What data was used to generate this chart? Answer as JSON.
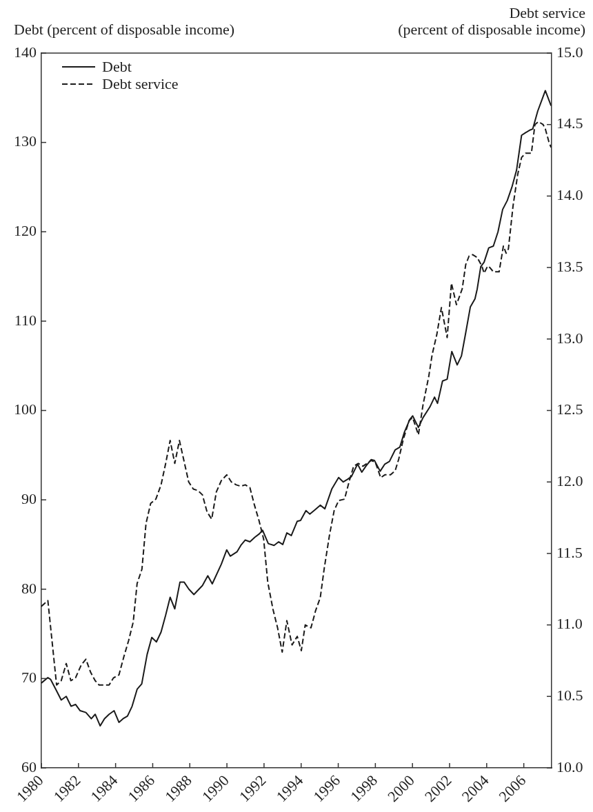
{
  "chart_data": {
    "type": "line",
    "ylabel": "Debt (percent of disposable income)",
    "y2label": "Debt service\n(percent of disposable income)",
    "xlim": [
      1980,
      2007.5
    ],
    "xticks": [
      1980,
      1982,
      1984,
      1986,
      1988,
      1990,
      1992,
      1994,
      1996,
      1998,
      2000,
      2002,
      2004,
      2006
    ],
    "ylim": [
      60,
      140
    ],
    "yticks": [
      60,
      70,
      80,
      90,
      100,
      110,
      120,
      130,
      140
    ],
    "y2lim": [
      10,
      15
    ],
    "y2ticks": [
      {
        "value": 10,
        "label": "10.0"
      },
      {
        "value": 10.5,
        "label": "10.5"
      },
      {
        "value": 11,
        "label": "11.0"
      },
      {
        "value": 11.5,
        "label": "11.5"
      },
      {
        "value": 12,
        "label": "12.0"
      },
      {
        "value": 12.5,
        "label": "12.5"
      },
      {
        "value": 13,
        "label": "13.0"
      },
      {
        "value": 13.5,
        "label": "13.5"
      },
      {
        "value": 14,
        "label": "14.0"
      },
      {
        "value": 14.5,
        "label": "14.5"
      },
      {
        "value": 15,
        "label": "15.0"
      }
    ],
    "legend": "top left",
    "marker": "none",
    "series": [
      {
        "name": "Debt",
        "color": "#1a1a1a",
        "line_style": "solid",
        "x": [
          1980.0,
          1980.35,
          1980.5,
          1980.8,
          1981.07,
          1981.34,
          1981.6,
          1981.84,
          1982.09,
          1982.4,
          1982.69,
          1982.9,
          1983.17,
          1983.4,
          1983.65,
          1983.92,
          1984.18,
          1984.4,
          1984.64,
          1984.89,
          1985.16,
          1985.41,
          1985.7,
          1985.95,
          1986.2,
          1986.45,
          1986.7,
          1986.94,
          1987.19,
          1987.47,
          1987.69,
          1987.95,
          1988.22,
          1988.45,
          1988.68,
          1988.97,
          1989.21,
          1989.7,
          1989.99,
          1990.18,
          1990.55,
          1990.75,
          1990.99,
          1991.24,
          1991.5,
          1991.75,
          1991.92,
          1992.23,
          1992.54,
          1992.79,
          1993.01,
          1993.23,
          1993.47,
          1993.79,
          1993.97,
          1994.26,
          1994.47,
          1994.75,
          1995.03,
          1995.28,
          1995.65,
          1996.02,
          1996.27,
          1996.5,
          1996.71,
          1997.04,
          1997.27,
          1997.5,
          1997.77,
          1997.95,
          1998.26,
          1998.51,
          1998.76,
          1999.07,
          1999.32,
          1999.57,
          1999.86,
          2000.01,
          2000.32,
          2000.57,
          2000.94,
          2001.19,
          2001.35,
          2001.62,
          2001.87,
          2002.12,
          2002.41,
          2002.64,
          2002.87,
          2003.12,
          2003.37,
          2003.49,
          2003.68,
          2003.86,
          2004.11,
          2004.36,
          2004.61,
          2004.86,
          2005.11,
          2005.36,
          2005.61,
          2005.88,
          2006.1,
          2006.35,
          2006.48,
          2006.75,
          2007.0,
          2007.16,
          2007.47
        ],
        "values": [
          69.5,
          70.1,
          69.9,
          68.7,
          67.6,
          68.0,
          66.9,
          67.1,
          66.4,
          66.2,
          65.5,
          66.0,
          64.7,
          65.5,
          66.0,
          66.4,
          65.1,
          65.5,
          65.8,
          66.9,
          68.8,
          69.4,
          72.7,
          74.6,
          74.1,
          75.2,
          77.1,
          79.1,
          77.8,
          80.8,
          80.8,
          80.0,
          79.4,
          79.9,
          80.4,
          81.5,
          80.6,
          82.8,
          84.4,
          83.7,
          84.2,
          84.9,
          85.5,
          85.3,
          85.8,
          86.2,
          86.6,
          85.1,
          84.9,
          85.3,
          85.0,
          86.3,
          86.0,
          87.6,
          87.7,
          88.8,
          88.4,
          88.9,
          89.4,
          89.0,
          91.2,
          92.5,
          92.0,
          92.3,
          92.6,
          94.0,
          93.1,
          93.8,
          94.5,
          94.4,
          93.2,
          94.0,
          94.3,
          95.6,
          95.9,
          97.6,
          99.0,
          99.4,
          98.1,
          99.2,
          100.4,
          101.5,
          100.8,
          103.3,
          103.5,
          106.6,
          105.1,
          106.1,
          108.7,
          111.6,
          112.5,
          113.6,
          116.1,
          116.6,
          118.2,
          118.4,
          120.0,
          122.5,
          123.5,
          125.0,
          126.9,
          130.8,
          131.1,
          131.4,
          131.5,
          133.5,
          134.9,
          135.8,
          134.1
        ]
      },
      {
        "name": "Debt service",
        "color": "#1a1a1a",
        "line_style": "dashed",
        "axis": "y2",
        "x": [
          1980.0,
          1980.35,
          1980.82,
          1981.07,
          1981.34,
          1981.59,
          1981.84,
          1982.15,
          1982.4,
          1982.65,
          1982.9,
          1983.11,
          1983.4,
          1983.65,
          1983.89,
          1984.18,
          1984.45,
          1984.7,
          1984.95,
          1985.16,
          1985.42,
          1985.64,
          1985.89,
          1986.17,
          1986.45,
          1986.7,
          1986.94,
          1987.19,
          1987.44,
          1987.94,
          1988.19,
          1988.44,
          1988.68,
          1988.93,
          1989.18,
          1989.43,
          1989.7,
          1989.99,
          1990.24,
          1990.5,
          1990.74,
          1990.99,
          1991.24,
          1991.48,
          1991.73,
          1991.98,
          1992.2,
          1992.48,
          1992.73,
          1992.98,
          1993.23,
          1993.51,
          1993.79,
          1994.01,
          1994.22,
          1994.53,
          1994.78,
          1995.03,
          1995.25,
          1995.53,
          1995.78,
          1996.02,
          1996.34,
          1996.58,
          1996.83,
          1997.08,
          1997.33,
          1997.55,
          1997.77,
          1997.99,
          1998.29,
          1998.51,
          1998.82,
          1999.07,
          1999.26,
          1999.51,
          1999.82,
          2000.01,
          2000.32,
          2000.57,
          2000.88,
          2001.06,
          2001.31,
          2001.56,
          2001.87,
          2002.1,
          2002.37,
          2002.68,
          2002.87,
          2003.05,
          2003.24,
          2003.49,
          2003.74,
          2003.86,
          2004.05,
          2004.17,
          2004.36,
          2004.67,
          2004.9,
          2005.05,
          2005.17,
          2005.42,
          2005.67,
          2005.88,
          2006.1,
          2006.41,
          2006.6,
          2006.79,
          2007.04,
          2007.16,
          2007.35,
          2007.47
        ],
        "values": [
          11.13,
          11.17,
          10.58,
          10.61,
          10.73,
          10.61,
          10.63,
          10.72,
          10.76,
          10.67,
          10.61,
          10.58,
          10.58,
          10.58,
          10.63,
          10.65,
          10.78,
          10.89,
          11.02,
          11.29,
          11.39,
          11.71,
          11.85,
          11.88,
          11.98,
          12.13,
          12.29,
          12.13,
          12.29,
          12.0,
          11.95,
          11.94,
          11.91,
          11.79,
          11.74,
          11.93,
          12.01,
          12.05,
          12.0,
          11.98,
          11.97,
          11.98,
          11.96,
          11.84,
          11.73,
          11.6,
          11.3,
          11.11,
          10.98,
          10.81,
          11.03,
          10.86,
          10.92,
          10.82,
          11.0,
          10.98,
          11.1,
          11.19,
          11.4,
          11.63,
          11.8,
          11.87,
          11.88,
          12.0,
          12.11,
          12.13,
          12.11,
          12.13,
          12.15,
          12.14,
          12.03,
          12.05,
          12.05,
          12.08,
          12.16,
          12.3,
          12.43,
          12.45,
          12.33,
          12.54,
          12.74,
          12.89,
          13.03,
          13.22,
          13.01,
          13.39,
          13.24,
          13.35,
          13.52,
          13.58,
          13.59,
          13.57,
          13.51,
          13.46,
          13.51,
          13.5,
          13.47,
          13.47,
          13.65,
          13.6,
          13.63,
          13.93,
          14.15,
          14.27,
          14.3,
          14.3,
          14.5,
          14.52,
          14.5,
          14.47,
          14.38,
          14.34
        ]
      }
    ]
  }
}
